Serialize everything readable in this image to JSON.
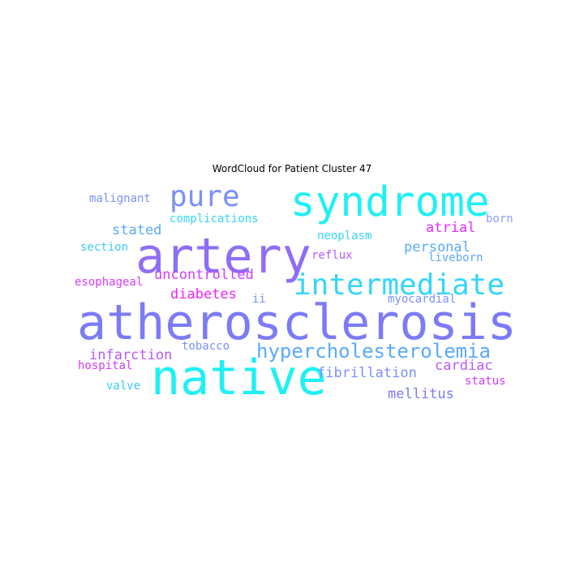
{
  "chart_data": {
    "type": "wordcloud",
    "title": "WordCloud for Patient Cluster 47",
    "words": [
      {
        "text": "atherosclerosis",
        "color": "#7b7bf7"
      },
      {
        "text": "native",
        "color": "#1ff0f5"
      },
      {
        "text": "artery",
        "color": "#8f6ef7"
      },
      {
        "text": "syndrome",
        "color": "#1ff0f5"
      },
      {
        "text": "intermediate",
        "color": "#35d6f8"
      },
      {
        "text": "pure",
        "color": "#7b90f7"
      },
      {
        "text": "hypercholesterolemia",
        "color": "#5aaaf8"
      },
      {
        "text": "uncontrolled",
        "color": "#d33bfa"
      },
      {
        "text": "diabetes",
        "color": "#f022fc"
      },
      {
        "text": "infarction",
        "color": "#b45af9"
      },
      {
        "text": "atrial",
        "color": "#e22cfb"
      },
      {
        "text": "personal",
        "color": "#5aaaf8"
      },
      {
        "text": "fibrillation",
        "color": "#7b90f7"
      },
      {
        "text": "mellitus",
        "color": "#7b7bf7"
      },
      {
        "text": "cardiac",
        "color": "#b45af9"
      },
      {
        "text": "stated",
        "color": "#5aaaf8"
      },
      {
        "text": "complications",
        "color": "#35d6f8"
      },
      {
        "text": "malignant",
        "color": "#7b90f7"
      },
      {
        "text": "neoplasm",
        "color": "#35d6f8"
      },
      {
        "text": "born",
        "color": "#8f9cf7"
      },
      {
        "text": "section",
        "color": "#3ccaf8"
      },
      {
        "text": "reflux",
        "color": "#b45af9"
      },
      {
        "text": "liveborn",
        "color": "#5aaaf8"
      },
      {
        "text": "esophageal",
        "color": "#d33bfa"
      },
      {
        "text": "ii",
        "color": "#7b90f7"
      },
      {
        "text": "myocardial",
        "color": "#7b90f7"
      },
      {
        "text": "tobacco",
        "color": "#7b90f7"
      },
      {
        "text": "hospital",
        "color": "#d33bfa"
      },
      {
        "text": "status",
        "color": "#d33bfa"
      },
      {
        "text": "valve",
        "color": "#3ccaf8"
      }
    ]
  }
}
